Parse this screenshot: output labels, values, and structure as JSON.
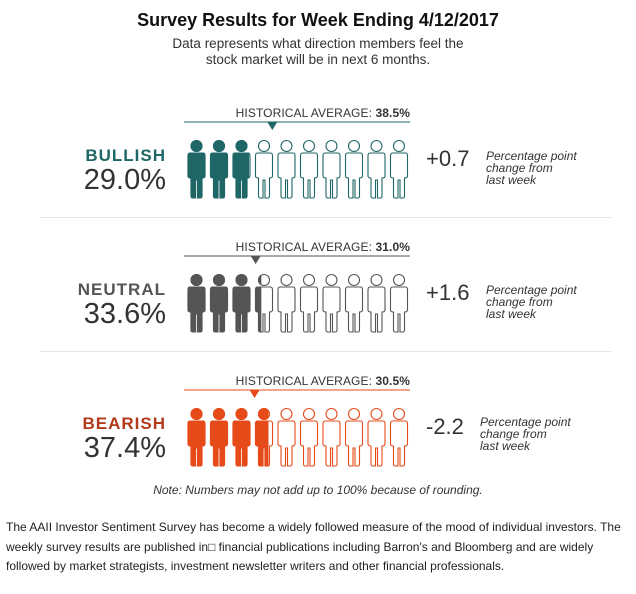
{
  "title": "Survey Results for Week Ending 4/12/2017",
  "subtitle_line1": "Data represents what direction members feel the",
  "subtitle_line2": "stock market will be in next 6 months.",
  "hist_prefix": "HISTORICAL AVERAGE: ",
  "change_desc": [
    "Percentage point",
    "change from",
    "last week"
  ],
  "note": "Note: Numbers may not add up to 100% because of rounding.",
  "footer": "The AAII Investor Sentiment Survey has become a widely followed measure of the mood of individual investors. The weekly survey results are published in□ financial publications including Barron's and Bloomberg and are widely followed by market strategists, investment newsletter writers and other financial professionals.",
  "chart_data": {
    "type": "table",
    "title": "Survey Results for Week Ending 4/12/2017",
    "rows": [
      {
        "label": "BULLISH",
        "value": 29.0,
        "value_text": "29.0%",
        "historical_average": 38.5,
        "historical_text": "38.5%",
        "change": 0.7,
        "change_text": "+0.7",
        "color": "#1f6666"
      },
      {
        "label": "NEUTRAL",
        "value": 33.6,
        "value_text": "33.6%",
        "historical_average": 31.0,
        "historical_text": "31.0%",
        "change": 1.6,
        "change_text": "+1.6",
        "color": "#555555"
      },
      {
        "label": "BEARISH",
        "value": 37.4,
        "value_text": "37.4%",
        "historical_average": 30.5,
        "historical_text": "30.5%",
        "change": -2.2,
        "change_text": "-2.2",
        "color": "#e64a19",
        "label_color": "#b23a1a"
      }
    ],
    "icons_per_row": 10,
    "scale_max": 100
  }
}
